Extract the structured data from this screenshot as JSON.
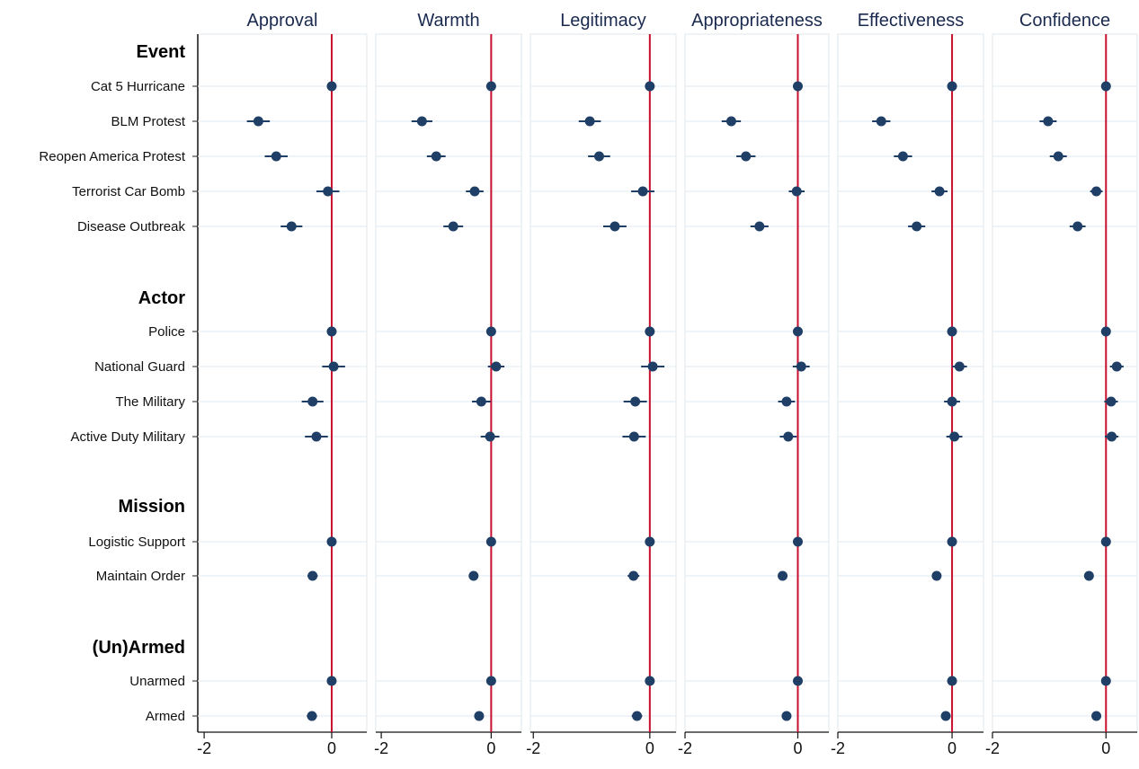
{
  "chart_data": {
    "type": "scatter",
    "subtype": "coefficient-plot-with-confidence-intervals",
    "panels": [
      "Approval",
      "Warmth",
      "Legitimacy",
      "Appropriateness",
      "Effectiveness",
      "Confidence"
    ],
    "groups": [
      {
        "label": "Event",
        "rows": [
          "Cat 5 Hurricane",
          "BLM Protest",
          "Reopen America Protest",
          "Terrorist Car Bomb",
          "Disease Outbreak"
        ]
      },
      {
        "label": "Actor",
        "rows": [
          "Police",
          "National Guard",
          "The Military",
          "Active Duty Military"
        ]
      },
      {
        "label": "Mission",
        "rows": [
          "Logistic Support",
          "Maintain Order"
        ]
      },
      {
        "label": "(Un)Armed",
        "rows": [
          "Unarmed",
          "Armed"
        ]
      }
    ],
    "x_ticks": [
      -2,
      0
    ],
    "x_tick_labels": [
      "-2",
      "0"
    ],
    "reference_line_x": 0,
    "reference_line_color": "#c8102e",
    "marker_color": "#1f3f66",
    "ci_color": "#1f3f66",
    "grid": "light horizontal lines per row",
    "series": [
      {
        "panel": "Approval",
        "xlim": [
          -2.1,
          0.55
        ],
        "estimates": [
          0,
          -1.15,
          -0.87,
          -0.06,
          -0.63,
          0,
          0.03,
          -0.3,
          -0.24,
          0,
          -0.3,
          0,
          -0.31
        ],
        "ci_low": [
          0,
          -1.33,
          -1.05,
          -0.24,
          -0.8,
          0,
          -0.15,
          -0.47,
          -0.42,
          0,
          -0.38,
          0,
          -0.39
        ],
        "ci_high": [
          0,
          -0.97,
          -0.69,
          0.12,
          -0.46,
          0,
          0.21,
          -0.13,
          -0.06,
          0,
          -0.22,
          0,
          -0.23
        ]
      },
      {
        "panel": "Warmth",
        "xlim": [
          -2.1,
          0.55
        ],
        "estimates": [
          0,
          -1.26,
          -1.0,
          -0.3,
          -0.69,
          0,
          0.09,
          -0.18,
          -0.02,
          0,
          -0.32,
          0,
          -0.22
        ],
        "ci_low": [
          0,
          -1.45,
          -1.17,
          -0.46,
          -0.87,
          0,
          -0.06,
          -0.35,
          -0.19,
          0,
          -0.4,
          0,
          -0.3
        ],
        "ci_high": [
          0,
          -1.07,
          -0.83,
          -0.14,
          -0.51,
          0,
          0.24,
          -0.01,
          0.15,
          0,
          -0.24,
          0,
          -0.14
        ]
      },
      {
        "panel": "Legitimacy",
        "xlim": [
          -2.05,
          0.45
        ],
        "estimates": [
          0,
          -1.03,
          -0.87,
          -0.12,
          -0.6,
          0,
          0.05,
          -0.25,
          -0.27,
          0,
          -0.28,
          0,
          -0.22
        ],
        "ci_low": [
          0,
          -1.22,
          -1.06,
          -0.32,
          -0.8,
          0,
          -0.15,
          -0.45,
          -0.47,
          0,
          -0.38,
          0,
          -0.31
        ],
        "ci_high": [
          0,
          -0.84,
          -0.68,
          0.08,
          -0.4,
          0,
          0.25,
          -0.05,
          -0.07,
          0,
          -0.18,
          0,
          -0.13
        ]
      },
      {
        "panel": "Appropriateness",
        "xlim": [
          -2.0,
          0.55
        ],
        "estimates": [
          0,
          -1.18,
          -0.92,
          -0.02,
          -0.68,
          0,
          0.06,
          -0.2,
          -0.17,
          0,
          -0.27,
          0,
          -0.2
        ],
        "ci_low": [
          0,
          -1.35,
          -1.09,
          -0.16,
          -0.84,
          0,
          -0.09,
          -0.35,
          -0.32,
          0,
          -0.35,
          0,
          -0.28
        ],
        "ci_high": [
          0,
          -1.01,
          -0.75,
          0.12,
          -0.52,
          0,
          0.21,
          -0.05,
          -0.02,
          0,
          -0.19,
          0,
          -0.12
        ]
      },
      {
        "panel": "Effectiveness",
        "xlim": [
          -2.0,
          0.55
        ],
        "estimates": [
          0,
          -1.24,
          -0.86,
          -0.22,
          -0.62,
          0,
          0.13,
          0.0,
          0.04,
          0,
          -0.27,
          0,
          -0.11
        ],
        "ci_low": [
          0,
          -1.4,
          -1.02,
          -0.36,
          -0.77,
          0,
          0.0,
          -0.14,
          -0.1,
          0,
          -0.35,
          0,
          -0.19
        ],
        "ci_high": [
          0,
          -1.08,
          -0.7,
          -0.08,
          -0.47,
          0,
          0.26,
          0.14,
          0.18,
          0,
          -0.19,
          0,
          -0.03
        ]
      },
      {
        "panel": "Confidence",
        "xlim": [
          -2.0,
          0.55
        ],
        "estimates": [
          0,
          -1.02,
          -0.84,
          -0.17,
          -0.5,
          0,
          0.19,
          0.09,
          0.1,
          0,
          -0.3,
          0,
          -0.17
        ],
        "ci_low": [
          0,
          -1.17,
          -0.99,
          -0.28,
          -0.64,
          0,
          0.07,
          -0.03,
          -0.02,
          0,
          -0.38,
          0,
          -0.25
        ],
        "ci_high": [
          0,
          -0.87,
          -0.69,
          -0.06,
          -0.36,
          0,
          0.31,
          0.21,
          0.22,
          0,
          -0.22,
          0,
          -0.09
        ]
      }
    ]
  }
}
